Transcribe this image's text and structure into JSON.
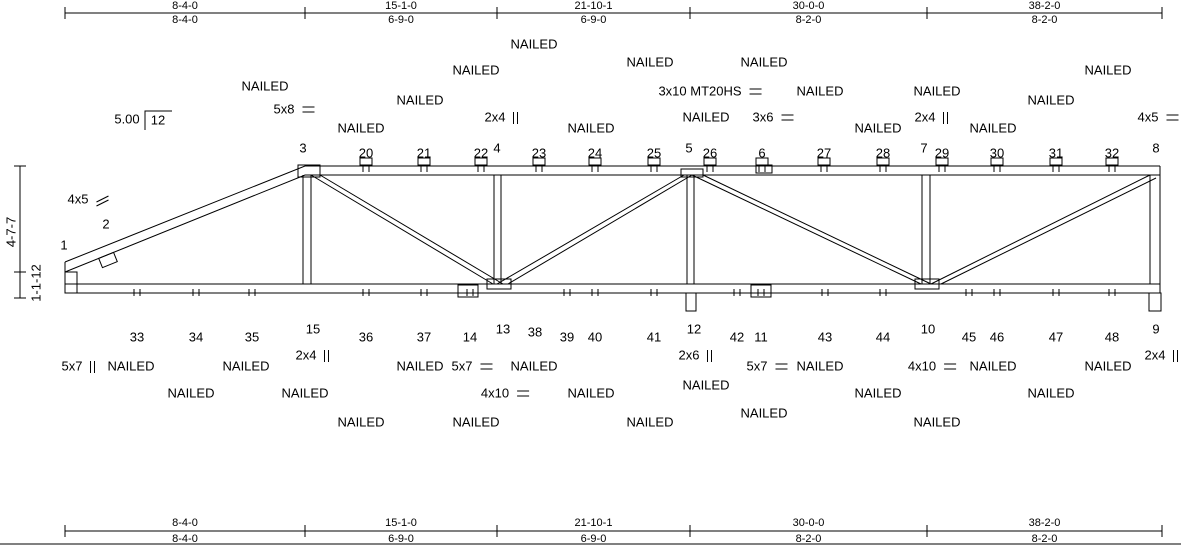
{
  "dims_top": [
    {
      "total": "8-4-0",
      "span": "8-4-0"
    },
    {
      "total": "15-1-0",
      "span": "6-9-0"
    },
    {
      "total": "21-10-1",
      "span": "6-9-0"
    },
    {
      "total": "30-0-0",
      "span": "8-2-0"
    },
    {
      "total": "38-2-0",
      "span": "8-2-0"
    }
  ],
  "dims_bottom": [
    {
      "total": "8-4-0",
      "span": "8-4-0"
    },
    {
      "total": "15-1-0",
      "span": "6-9-0"
    },
    {
      "total": "21-10-1",
      "span": "6-9-0"
    },
    {
      "total": "30-0-0",
      "span": "8-2-0"
    },
    {
      "total": "38-2-0",
      "span": "8-2-0"
    }
  ],
  "heights": [
    "4-7-7",
    "1-1-12"
  ],
  "pitch": {
    "rise": "5.00",
    "run": "12"
  },
  "joints": [
    "1",
    "2",
    "3",
    "20",
    "21",
    "22",
    "4",
    "23",
    "24",
    "25",
    "5",
    "26",
    "6",
    "27",
    "28",
    "7",
    "29",
    "30",
    "31",
    "32",
    "8",
    "33",
    "34",
    "35",
    "15",
    "36",
    "37",
    "14",
    "13",
    "38",
    "39",
    "40",
    "41",
    "12",
    "42",
    "11",
    "43",
    "44",
    "10",
    "45",
    "46",
    "47",
    "48",
    "9"
  ],
  "plates": [
    "4x5",
    "5x8",
    "2x4",
    "3x10 MT20HS",
    "3x6",
    "2x4",
    "4x5",
    "5x7",
    "2x4",
    "5x7",
    "4x10",
    "2x6",
    "5x7",
    "4x10",
    "2x4"
  ],
  "nailed": [
    "NAILED",
    "NAILED",
    "NAILED",
    "NAILED",
    "NAILED",
    "NAILED",
    "NAILED",
    "NAILED",
    "NAILED",
    "NAILED",
    "NAILED",
    "NAILED",
    "NAILED",
    "NAILED",
    "NAILED",
    "NAILED",
    "NAILED",
    "NAILED",
    "NAILED",
    "NAILED",
    "NAILED",
    "NAILED",
    "NAILED",
    "NAILED",
    "NAILED",
    "NAILED",
    "NAILED",
    "NAILED",
    "NAILED",
    "NAILED",
    "NAILED",
    "NAILED",
    "NAILED"
  ]
}
